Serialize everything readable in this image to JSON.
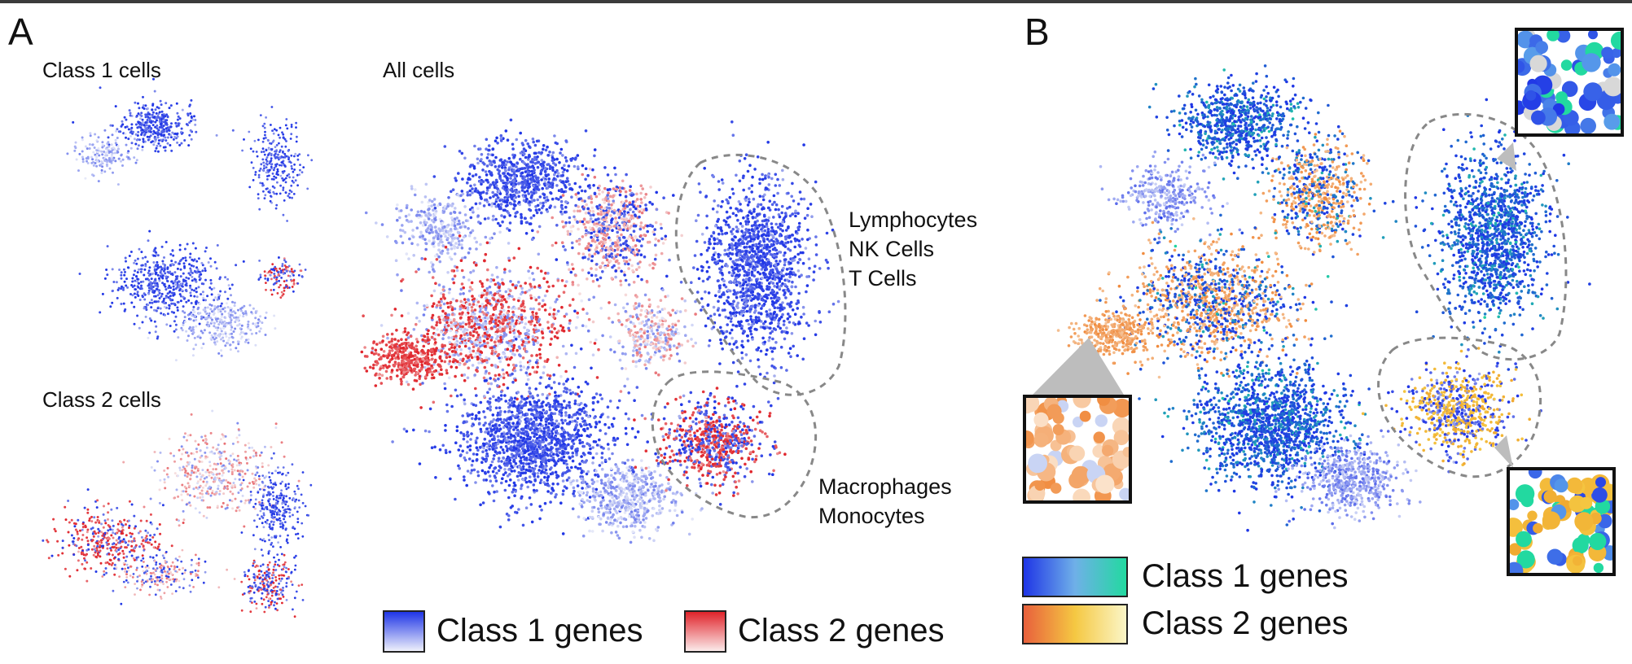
{
  "panels": {
    "a": {
      "letter": "A",
      "class1_title": "Class 1 cells",
      "class2_title": "Class 2 cells",
      "all_title": "All cells",
      "lymph_labels": [
        "Lymphocytes",
        "NK Cells",
        "T Cells"
      ],
      "macro_labels": [
        "Macrophages",
        "Monocytes"
      ],
      "legend": {
        "class1": "Class 1 genes",
        "class2": "Class 2 genes"
      }
    },
    "b": {
      "letter": "B",
      "legend": {
        "class1": "Class 1 genes",
        "class2": "Class 2 genes"
      }
    }
  },
  "colors": {
    "class1_gene": "#1f35e6",
    "class1_light": "#b9c0ee",
    "class2_gene": "#e0232a",
    "class2_light": "#f2b8b8",
    "class1_alt": "#22d9a0",
    "class2_alt": "#f5c842",
    "orange": "#f08a3c",
    "outline": "#777777"
  }
}
